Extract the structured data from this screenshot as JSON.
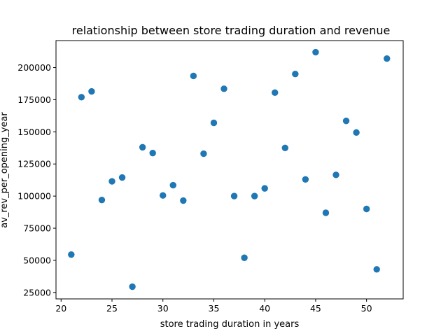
{
  "chart_data": {
    "type": "scatter",
    "title": "relationship between store trading duration and revenue",
    "xlabel": "store trading duration in years",
    "ylabel": "av_rev_per_opening_year",
    "xlim": [
      19.5,
      53.6
    ],
    "ylim": [
      20000,
      221000
    ],
    "xticks": [
      20,
      25,
      30,
      35,
      40,
      45,
      50
    ],
    "yticks": [
      25000,
      50000,
      75000,
      100000,
      125000,
      150000,
      175000,
      200000
    ],
    "grid": false,
    "marker_color": "#1f77b4",
    "points": [
      {
        "x": 21,
        "y": 54500
      },
      {
        "x": 22,
        "y": 177000
      },
      {
        "x": 23,
        "y": 181500
      },
      {
        "x": 24,
        "y": 97000
      },
      {
        "x": 25,
        "y": 111500
      },
      {
        "x": 26,
        "y": 114500
      },
      {
        "x": 27,
        "y": 29500
      },
      {
        "x": 28,
        "y": 138000
      },
      {
        "x": 29,
        "y": 133500
      },
      {
        "x": 30,
        "y": 100500
      },
      {
        "x": 31,
        "y": 108500
      },
      {
        "x": 32,
        "y": 96500
      },
      {
        "x": 33,
        "y": 193500
      },
      {
        "x": 34,
        "y": 133000
      },
      {
        "x": 35,
        "y": 157000
      },
      {
        "x": 36,
        "y": 183500
      },
      {
        "x": 37,
        "y": 100000
      },
      {
        "x": 38,
        "y": 52000
      },
      {
        "x": 39,
        "y": 100000
      },
      {
        "x": 40,
        "y": 106000
      },
      {
        "x": 41,
        "y": 180500
      },
      {
        "x": 42,
        "y": 137500
      },
      {
        "x": 43,
        "y": 195000
      },
      {
        "x": 44,
        "y": 113000
      },
      {
        "x": 45,
        "y": 212000
      },
      {
        "x": 46,
        "y": 87000
      },
      {
        "x": 47,
        "y": 116500
      },
      {
        "x": 48,
        "y": 158500
      },
      {
        "x": 49,
        "y": 149500
      },
      {
        "x": 50,
        "y": 90000
      },
      {
        "x": 51,
        "y": 43000
      },
      {
        "x": 52,
        "y": 207000
      }
    ]
  }
}
